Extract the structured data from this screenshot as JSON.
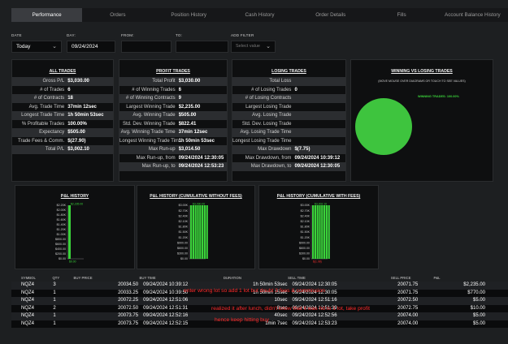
{
  "tabs": [
    "Performance",
    "Orders",
    "Position History",
    "Cash History",
    "Order Details",
    "Fills",
    "Account Balance History"
  ],
  "filters": {
    "date_label": "DATE",
    "date_value": "Today",
    "day_label": "DAY:",
    "day_value": "09/24/2024",
    "from_label": "FROM:",
    "to_label": "TO:",
    "add_filter_label": "ADD FILTER",
    "add_filter_placeholder": "Select value"
  },
  "all_trades": {
    "title": "ALL TRADES",
    "rows": [
      {
        "k": "Gross P/L",
        "v": "$3,030.00"
      },
      {
        "k": "# of Trades",
        "v": "6"
      },
      {
        "k": "# of Contracts",
        "v": "18"
      },
      {
        "k": "Avg. Trade Time",
        "v": "37min 12sec"
      },
      {
        "k": "Longest Trade Time",
        "v": "1h 50min 53sec"
      },
      {
        "k": "% Profitable Trades",
        "v": "100.00%"
      },
      {
        "k": "Expectancy",
        "v": "$505.00"
      },
      {
        "k": "Trade Fees & Comm.",
        "v": "$(27.90)"
      },
      {
        "k": "Total P/L",
        "v": "$3,002.10"
      }
    ]
  },
  "profit_trades": {
    "title": "PROFIT TRADES",
    "rows": [
      {
        "k": "Total Profit",
        "v": "$3,030.00"
      },
      {
        "k": "# of Winning Trades",
        "v": "6"
      },
      {
        "k": "# of Winning Contracts",
        "v": "9"
      },
      {
        "k": "Largest Winning Trade",
        "v": "$2,235.00"
      },
      {
        "k": "Avg. Winning Trade",
        "v": "$505.00"
      },
      {
        "k": "Std. Dev. Winning Trade",
        "v": "$822.41"
      },
      {
        "k": "Avg. Winning Trade Time",
        "v": "37min 12sec"
      },
      {
        "k": "Longest Winning Trade Time",
        "v": "1h 50min 53sec"
      },
      {
        "k": "Max Run-up",
        "v": "$3,014.50"
      },
      {
        "k": "Max Run-up, from",
        "v": "09/24/2024 12:30:05"
      },
      {
        "k": "Max Run-up, to",
        "v": "09/24/2024 12:53:23"
      }
    ]
  },
  "losing_trades": {
    "title": "LOSING TRADES",
    "rows": [
      {
        "k": "Total Loss",
        "v": ""
      },
      {
        "k": "# of Losing Trades",
        "v": "0"
      },
      {
        "k": "# of Losing Contracts",
        "v": ""
      },
      {
        "k": "Largest Losing Trade",
        "v": ""
      },
      {
        "k": "Avg. Losing Trade",
        "v": ""
      },
      {
        "k": "Std. Dev. Losing Trade",
        "v": ""
      },
      {
        "k": "Avg. Losing Trade Time",
        "v": ""
      },
      {
        "k": "Longest Losing Trade Time",
        "v": ""
      },
      {
        "k": "Max Drawdown",
        "v": "$(7.75)"
      },
      {
        "k": "Max Drawdown, from",
        "v": "09/24/2024 10:39:12"
      },
      {
        "k": "Max Drawdown, to",
        "v": "09/24/2024 12:30:05"
      }
    ]
  },
  "win_vs_lose": {
    "title": "WINNING VS LOSING TRADES",
    "note": "(MOVE MOUSE OVER DIAGRAMS OR TOUCH TO SEE VALUES)",
    "legend": "WINNING TRADES: 100.00%",
    "color": "#3ec43e"
  },
  "charts": {
    "pl_history": {
      "title": "P&L HISTORY",
      "top_label": "$2,235.00",
      "bottom_label": "$0.00"
    },
    "pl_cum_without": {
      "title": "P&L HISTORY (CUMULATIVE WITHOUT FEES)",
      "top_label": "$3,030.00"
    },
    "pl_cum_with": {
      "title": "P&L HISTORY (CUMULATIVE WITH FEES)",
      "top_label": "$3,002.10",
      "bottom_label": "$(1.08)"
    }
  },
  "chart_data": [
    {
      "type": "bar",
      "title": "P&L HISTORY",
      "yticks": [
        "$2.20K",
        "$2.00K",
        "$1.80K",
        "$1.60K",
        "$1.40K",
        "$1.20K",
        "$1.00K",
        "$800.00",
        "$600.00",
        "$400.00",
        "$200.00",
        "$0.00"
      ],
      "ylim": [
        0,
        2235
      ],
      "values": [
        2235
      ]
    },
    {
      "type": "bar",
      "title": "P&L HISTORY (CUMULATIVE WITHOUT FEES)",
      "yticks": [
        "$3.00K",
        "$2.70K",
        "$2.40K",
        "$2.10K",
        "$1.80K",
        "$1.50K",
        "$1.20K",
        "$900.00",
        "$600.00",
        "$300.00",
        "$0.00"
      ],
      "ylim": [
        0,
        3030
      ],
      "values": [
        3030,
        3030,
        3030,
        3030,
        3030,
        3030,
        3030,
        3030
      ]
    },
    {
      "type": "bar",
      "title": "P&L HISTORY (CUMULATIVE WITH FEES)",
      "yticks": [
        "$3.00K",
        "$2.70K",
        "$2.40K",
        "$2.10K",
        "$1.80K",
        "$1.50K",
        "$1.20K",
        "$900.00",
        "$600.00",
        "$300.00",
        "$0.00"
      ],
      "ylim": [
        0,
        3002.1
      ],
      "values": [
        3002.1,
        3002.1,
        3002.1,
        3002.1,
        3002.1,
        3002.1,
        3002.1,
        3002.1
      ]
    }
  ],
  "fills_table": {
    "headers": [
      "SYMBOL",
      "QTY",
      "BUY PRICE",
      "BUY TIME",
      "DURATION",
      "SELL TIME",
      "SELL PRICE",
      "P&L"
    ],
    "rows": [
      [
        "NQZ4",
        "3",
        "20034.50",
        "09/24/2024 10:39:12",
        "1h 50min 53sec",
        "09/24/2024 12:30:05",
        "20071.75",
        "$2,235.00"
      ],
      [
        "NQZ4",
        "1",
        "20033.25",
        "09/24/2024 10:39:50",
        "1h 50min 15sec",
        "09/24/2024 12:30:05",
        "20071.75",
        "$770.00"
      ],
      [
        "NQZ4",
        "1",
        "20072.25",
        "09/24/2024 12:51:06",
        "10sec",
        "09/24/2024 12:51:16",
        "20072.50",
        "$5.00"
      ],
      [
        "NQZ4",
        "2",
        "20072.50",
        "09/24/2024 12:51:31",
        "8sec",
        "09/24/2024 12:51:39",
        "20072.75",
        "$10.00"
      ],
      [
        "NQZ4",
        "1",
        "20073.75",
        "09/24/2024 12:52:16",
        "40sec",
        "09/24/2024 12:52:56",
        "20074.00",
        "$5.00"
      ],
      [
        "NQZ4",
        "1",
        "20073.75",
        "09/24/2024 12:52:15",
        "1min 7sec",
        "09/24/2024 12:53:23",
        "20074.00",
        "$5.00"
      ]
    ]
  },
  "annotations": {
    "line1": "enter wrong lot so add 1 lot but doubt 3 fees & commission",
    "line2": "realized it after lunch, didn't know that it was hd to 1 lot, take profit",
    "line3": "hence keep hitting buy"
  }
}
